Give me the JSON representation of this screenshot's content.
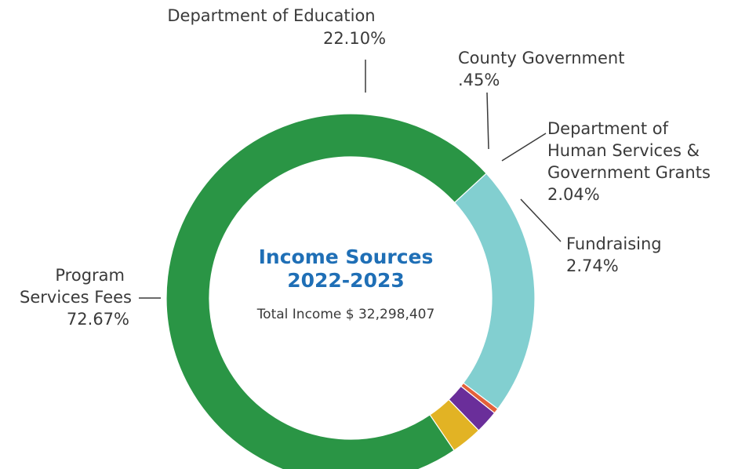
{
  "chart_data": {
    "type": "pie",
    "title": "Income Sources",
    "subtitle": "2022-2023",
    "total_label": "Total Income $ 32,298,407",
    "slices": [
      {
        "key": "program",
        "lines": [
          "Program",
          "Services Fees"
        ],
        "value_label": "72.67%",
        "value": 72.67,
        "color": "#2a9545"
      },
      {
        "key": "education",
        "lines": [
          "Department of Education"
        ],
        "value_label": "22.10%",
        "value": 22.1,
        "color": "#82cfd0"
      },
      {
        "key": "county",
        "lines": [
          "County Government"
        ],
        "value_label": ".45%",
        "value": 0.45,
        "color": "#e4613a"
      },
      {
        "key": "human",
        "lines": [
          "Department of",
          "Human Services &",
          "Government Grants"
        ],
        "value_label": "2.04%",
        "value": 2.04,
        "color": "#6a2e9a"
      },
      {
        "key": "fundraising",
        "lines": [
          "Fundraising"
        ],
        "value_label": "2.74%",
        "value": 2.74,
        "color": "#e2b324"
      }
    ],
    "title_color": "#1f6fb6"
  }
}
